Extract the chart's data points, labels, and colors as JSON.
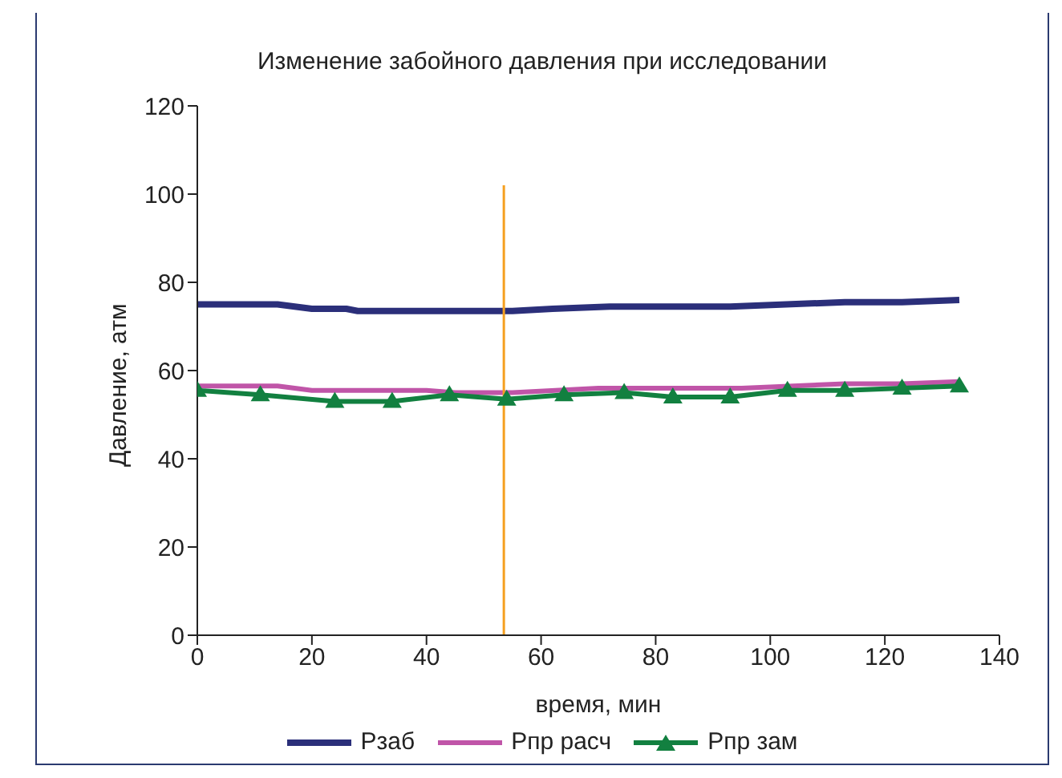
{
  "chart_data": {
    "type": "line",
    "title": "Изменение забойного давления при исследовании",
    "xlabel": "время, мин",
    "ylabel": "Давление, атм",
    "xlim": [
      0,
      140
    ],
    "xticks": [
      0,
      20,
      40,
      60,
      80,
      100,
      120,
      140
    ],
    "ylim": [
      0,
      120
    ],
    "yticks": [
      0,
      20,
      40,
      60,
      80,
      100,
      120
    ],
    "grid": false,
    "legend": "bottom",
    "series": [
      {
        "name": "Рзаб",
        "color": "#2b2f7a",
        "marker": "none",
        "x": [
          0,
          14,
          20,
          26,
          28,
          55,
          62,
          72,
          93,
          113,
          123,
          133
        ],
        "values": [
          75,
          75,
          74,
          74,
          73.5,
          73.5,
          74,
          74.5,
          74.5,
          75.5,
          75.5,
          76
        ]
      },
      {
        "name": "Рпр расч",
        "color": "#c055a8",
        "marker": "none",
        "x": [
          0,
          14,
          20,
          40,
          45,
          55,
          70,
          95,
          113,
          123,
          133
        ],
        "values": [
          56.5,
          56.5,
          55.5,
          55.5,
          55,
          55,
          56,
          56,
          57,
          57,
          57.5
        ]
      },
      {
        "name": "Рпр зам",
        "color": "#128040",
        "marker": "triangle",
        "x": [
          0,
          11,
          24,
          34,
          44,
          54,
          64,
          74.5,
          83,
          93,
          103,
          113,
          123,
          133
        ],
        "values": [
          55.5,
          54.5,
          53,
          53,
          54.5,
          53.5,
          54.5,
          55,
          54,
          54,
          55.5,
          55.5,
          56,
          56.5
        ]
      },
      {
        "color": "#f5a020",
        "marker": "none",
        "x": [
          53.5,
          53.5
        ],
        "values": [
          0,
          102
        ]
      }
    ]
  }
}
